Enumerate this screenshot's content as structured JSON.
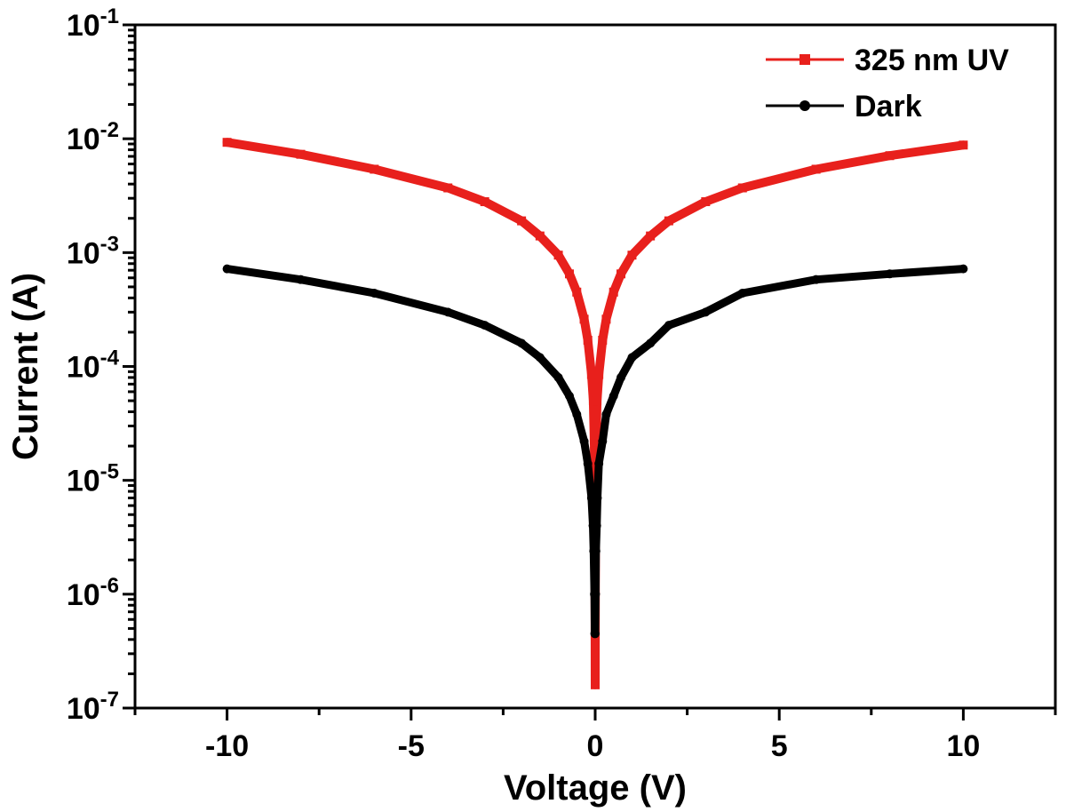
{
  "chart_data": {
    "type": "scatter",
    "xlabel": "Voltage (V)",
    "ylabel": "Current (A)",
    "xlim": [
      -12.5,
      12.5
    ],
    "ylim": [
      1e-07,
      0.1
    ],
    "yscale": "log",
    "x_ticks": [
      -10,
      -5,
      0,
      5,
      10
    ],
    "x_tick_labels": [
      "-10",
      "-5",
      "0",
      "5",
      "10"
    ],
    "y_ticks": [
      {
        "value": 1e-07,
        "base": "10",
        "exp": "-7"
      },
      {
        "value": 1e-06,
        "base": "10",
        "exp": "-6"
      },
      {
        "value": 1e-05,
        "base": "10",
        "exp": "-5"
      },
      {
        "value": 0.0001,
        "base": "10",
        "exp": "-4"
      },
      {
        "value": 0.001,
        "base": "10",
        "exp": "-3"
      },
      {
        "value": 0.01,
        "base": "10",
        "exp": "-2"
      },
      {
        "value": 0.1,
        "base": "10",
        "exp": "-1"
      }
    ],
    "grid": false,
    "legend_position": "top-right",
    "series": [
      {
        "name": "325 nm UV",
        "color": "#e8201c",
        "marker": "square",
        "x": [
          -10,
          -8,
          -6,
          -4,
          -3,
          -2,
          -1.5,
          -1,
          -0.7,
          -0.5,
          -0.3,
          -0.2,
          -0.1,
          -0.05,
          -0.02,
          -0.01,
          0,
          0.01,
          0.02,
          0.05,
          0.1,
          0.2,
          0.3,
          0.5,
          0.7,
          1,
          1.5,
          2,
          3,
          4,
          6,
          8,
          10
        ],
        "y": [
          0.0093,
          0.0073,
          0.0054,
          0.0037,
          0.0028,
          0.0019,
          0.0014,
          0.00095,
          0.00065,
          0.00045,
          0.00026,
          0.00017,
          8.5e-05,
          5e-05,
          1.8e-05,
          9e-06,
          1.6e-07,
          9e-06,
          1.8e-05,
          5e-05,
          8.5e-05,
          0.00017,
          0.00026,
          0.00045,
          0.00065,
          0.00095,
          0.0014,
          0.0019,
          0.0028,
          0.0037,
          0.0054,
          0.0071,
          0.0088
        ]
      },
      {
        "name": "Dark",
        "color": "#000000",
        "marker": "circle",
        "x": [
          -10,
          -8,
          -6,
          -4,
          -3,
          -2,
          -1.5,
          -1,
          -0.7,
          -0.5,
          -0.3,
          -0.2,
          -0.1,
          -0.06,
          -0.04,
          -0.02,
          -0.01,
          0,
          0.01,
          0.02,
          0.04,
          0.06,
          0.1,
          0.2,
          0.3,
          0.5,
          0.7,
          1,
          1.5,
          2,
          3,
          4,
          6,
          8,
          10
        ],
        "y": [
          0.00072,
          0.00058,
          0.00044,
          0.0003,
          0.00023,
          0.00016,
          0.00012,
          8e-05,
          5.5e-05,
          3.8e-05,
          2.2e-05,
          1.4e-05,
          7e-06,
          4e-06,
          2.4e-06,
          1e-06,
          4.5e-07,
          4.5e-07,
          1e-06,
          2.4e-06,
          4e-06,
          7e-06,
          1.4e-05,
          2.2e-05,
          3.8e-05,
          5.5e-05,
          8e-05,
          0.00012,
          0.00016,
          0.00023,
          0.0003,
          0.00044,
          0.00058,
          0.00065,
          0.00072
        ]
      }
    ]
  }
}
